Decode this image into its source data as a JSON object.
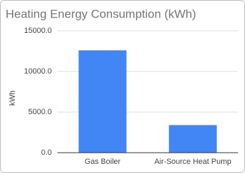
{
  "chart_data": {
    "type": "bar",
    "title": "Heating Energy Consumption (kWh)",
    "y_label": "kWh",
    "categories": [
      "Gas Boiler",
      "Air-Source Heat Pump"
    ],
    "values": [
      12600,
      3400
    ],
    "color": "#4285f4",
    "ylim": [
      0,
      15000
    ],
    "yticks": [
      {
        "value": 0,
        "label": "0.0"
      },
      {
        "value": 5000,
        "label": "5000.0"
      },
      {
        "value": 10000,
        "label": "10000.0"
      },
      {
        "value": 15000,
        "label": "15000.0"
      }
    ],
    "grid": true
  }
}
